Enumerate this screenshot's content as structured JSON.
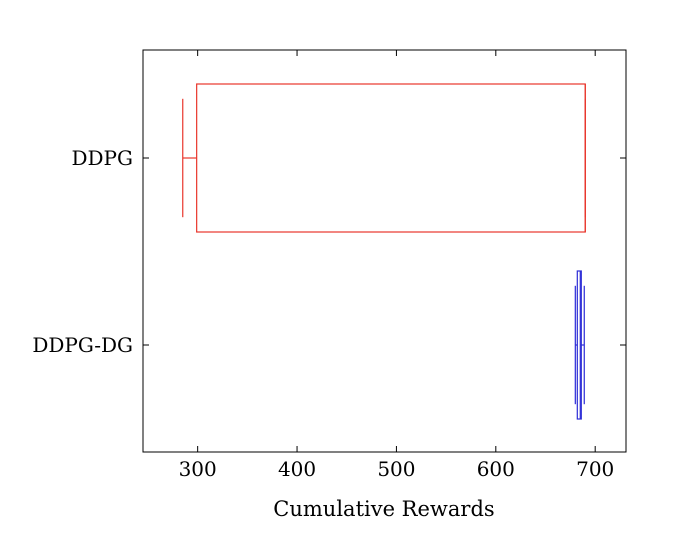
{
  "chart_data": {
    "type": "boxplot",
    "orientation": "horizontal",
    "title": "",
    "xlabel": "Cumulative Rewards",
    "ylabel": "",
    "xlim": [
      245,
      731
    ],
    "x_ticks": [
      300,
      400,
      500,
      600,
      700
    ],
    "categories": [
      "DDPG",
      "DDPG-DG"
    ],
    "series": [
      {
        "category": "DDPG",
        "color": "#e8352b",
        "whisker_low": 285,
        "q1": 299,
        "median": 690,
        "q3": 690,
        "whisker_high": 690
      },
      {
        "category": "DDPG-DG",
        "color": "#2b2bd6",
        "whisker_low": 680,
        "q1": 682,
        "median": 685,
        "q3": 686,
        "whisker_high": 689
      }
    ]
  }
}
